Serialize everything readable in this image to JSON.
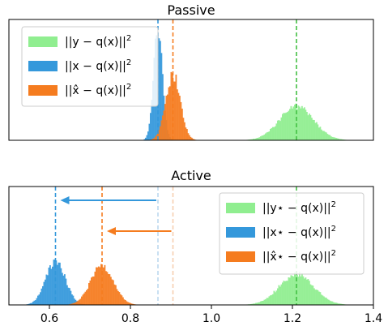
{
  "chart_data": [
    {
      "type": "histogram",
      "title": "Passive",
      "xlim": [
        0.5,
        1.4
      ],
      "yticks": false,
      "legend_position": "upper-left",
      "series": [
        {
          "name": "||y − q(x)||²",
          "label_base": "||y − q(x)||",
          "color": "#90EE90",
          "mean": 1.21,
          "std": 0.042,
          "peak": 0.3
        },
        {
          "name": "||x − q(x)||²",
          "label_base": "||x − q(x)||",
          "color": "#3498db",
          "mean": 0.868,
          "std": 0.011,
          "peak": 1.0
        },
        {
          "name": "||x̂ − q(x)||²",
          "label_base": "||x̂ − q(x)||",
          "color": "#f57c1f",
          "mean": 0.905,
          "std": 0.018,
          "peak": 0.58
        }
      ],
      "dashed_lines": [
        {
          "x": 1.21,
          "color": "#44c044"
        },
        {
          "x": 0.868,
          "color": "#3498db"
        },
        {
          "x": 0.905,
          "color": "#f57c1f"
        }
      ]
    },
    {
      "type": "histogram",
      "title": "Active",
      "xlim": [
        0.5,
        1.4
      ],
      "xticks": [
        "0.6",
        "0.8",
        "1.0",
        "1.2",
        "1.4"
      ],
      "xtick_values": [
        0.6,
        0.8,
        1.0,
        1.2,
        1.4
      ],
      "yticks": false,
      "legend_position": "upper-right",
      "series": [
        {
          "name": "||y⋆ − q(x)||²",
          "label_base": "||y⋆ − q(x)||",
          "color": "#90EE90",
          "mean": 1.21,
          "std": 0.042,
          "peak": 0.28
        },
        {
          "name": "||x⋆ − q(x)||²",
          "label_base": "||x⋆ − q(x)||",
          "color": "#3498db",
          "mean": 0.615,
          "std": 0.024,
          "peak": 0.4
        },
        {
          "name": "||x̂⋆ − q(x)||²",
          "label_base": "||x̂⋆ − q(x)||",
          "color": "#f57c1f",
          "mean": 0.73,
          "std": 0.028,
          "peak": 0.36
        }
      ],
      "dashed_lines": [
        {
          "x": 1.21,
          "color": "#44c044"
        },
        {
          "x": 0.615,
          "color": "#3498db"
        },
        {
          "x": 0.73,
          "color": "#f57c1f"
        },
        {
          "x": 0.868,
          "color": "#bcd9ef"
        },
        {
          "x": 0.905,
          "color": "#f7cfb0"
        }
      ],
      "arrows": [
        {
          "from": 0.868,
          "to": 0.615,
          "color": "#3498db"
        },
        {
          "from": 0.905,
          "to": 0.73,
          "color": "#f57c1f"
        }
      ]
    }
  ]
}
